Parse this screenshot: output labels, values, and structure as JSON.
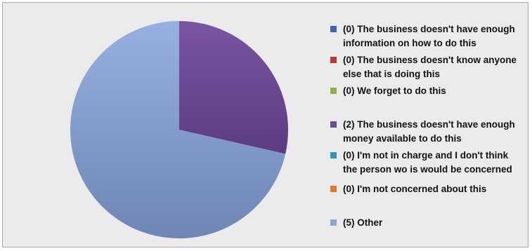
{
  "chart_data": {
    "type": "pie",
    "slices": [
      {
        "label": "(0) The business doesn't have enough information on how to do this",
        "lines": [
          "(0) The business doesn't have enough",
          "information on how to do this"
        ],
        "value": 0,
        "color": "#3a67b4"
      },
      {
        "label": "(0) The business doesn't know anyone else that is doing this",
        "lines": [
          "(0) The business doesn't know anyone",
          "else that is doing this"
        ],
        "value": 0,
        "color": "#b73a37"
      },
      {
        "label": "(0) We forget to do this",
        "lines": [
          "(0) We forget to do this"
        ],
        "value": 0,
        "color": "#8bb043"
      },
      {
        "label": "(2) The business doesn't have enough money available to do this",
        "lines": [
          "(2) The business doesn't have enough",
          "money available to do this"
        ],
        "value": 2,
        "color": "#6c4b93"
      },
      {
        "label": "(0) I'm not in charge and I don't think the person wo is would be concerned",
        "lines": [
          "(0) I'm not in charge and I don't think",
          "the person wo is would be concerned"
        ],
        "value": 0,
        "color": "#2f9ab1"
      },
      {
        "label": "(0) I'm not concerned about this",
        "lines": [
          "(0) I'm not concerned about this"
        ],
        "value": 0,
        "color": "#e1792a"
      },
      {
        "label": "(5) Other",
        "lines": [
          "(5) Other"
        ],
        "value": 5,
        "color": "#8ea6d6"
      }
    ],
    "legend_position": "right"
  }
}
